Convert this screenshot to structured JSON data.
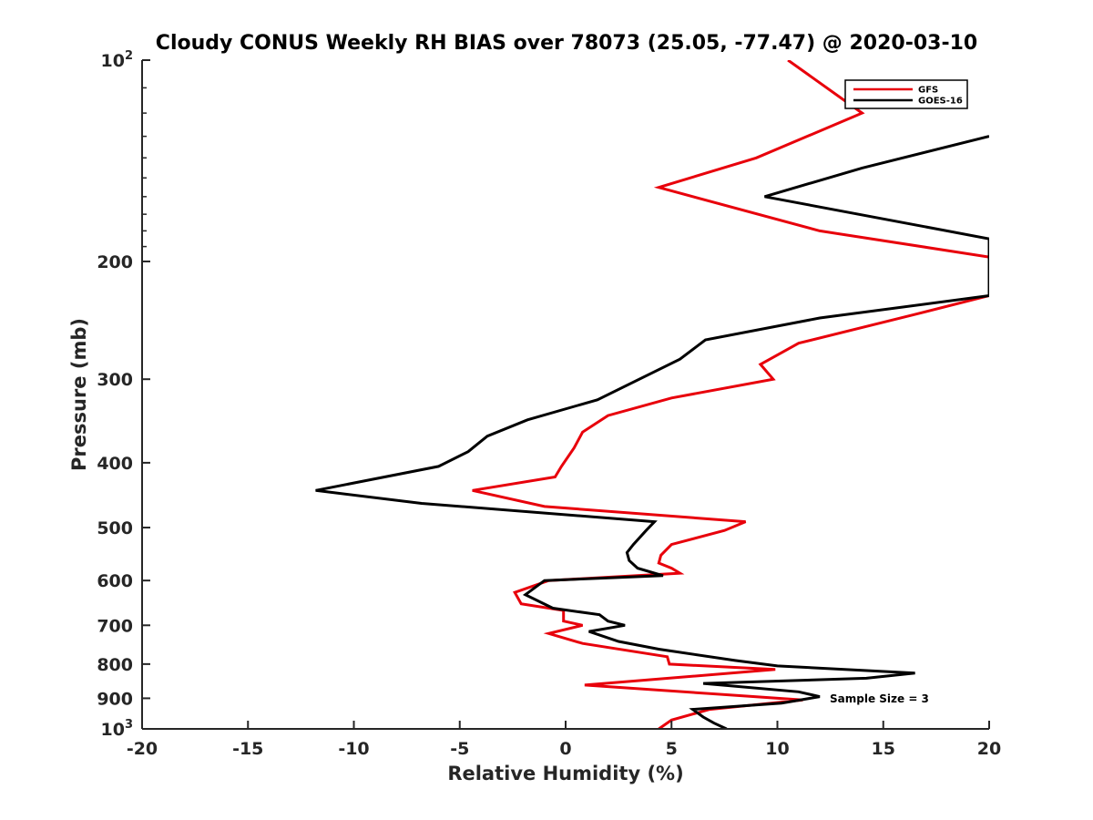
{
  "chart_data": {
    "type": "line",
    "title": "Cloudy CONUS Weekly RH BIAS over 78073 (25.05, -77.47) @ 2020-03-10",
    "xlabel": "Relative Humidity (%)",
    "ylabel": "Pressure (mb)",
    "xlim": [
      -20,
      20
    ],
    "ylim": [
      100,
      1000
    ],
    "y_scale": "log",
    "y_reversed": true,
    "grid": false,
    "legend_position": "top-right",
    "x_ticks": [
      "-20",
      "-15",
      "-10",
      "-5",
      "0",
      "5",
      "10",
      "15",
      "20"
    ],
    "y_ticks": [
      {
        "value": 100,
        "base": "10",
        "exp": "2"
      },
      {
        "value": 200,
        "label": "200"
      },
      {
        "value": 300,
        "label": "300"
      },
      {
        "value": 400,
        "label": "400"
      },
      {
        "value": 500,
        "label": "500"
      },
      {
        "value": 600,
        "label": "600"
      },
      {
        "value": 700,
        "label": "700"
      },
      {
        "value": 800,
        "label": "800"
      },
      {
        "value": 900,
        "label": "900"
      },
      {
        "value": 1000,
        "base": "10",
        "exp": "3"
      }
    ],
    "annotation": "Sample Size = 3",
    "series": [
      {
        "name": "GFS",
        "color": "#e8000b",
        "points": [
          [
            10.5,
            100
          ],
          [
            14,
            120
          ],
          [
            9,
            140
          ],
          [
            4.4,
            155
          ],
          [
            12,
            180
          ],
          [
            20,
            197
          ],
          [
            20,
            225
          ],
          [
            16.5,
            240
          ],
          [
            11,
            265
          ],
          [
            9.2,
            285
          ],
          [
            9.8,
            300
          ],
          [
            5,
            320
          ],
          [
            2,
            340
          ],
          [
            0.8,
            360
          ],
          [
            0.4,
            380
          ],
          [
            -0.2,
            405
          ],
          [
            -0.5,
            420
          ],
          [
            -4.4,
            440
          ],
          [
            -1,
            465
          ],
          [
            8.5,
            490
          ],
          [
            7.5,
            505
          ],
          [
            5,
            530
          ],
          [
            4.5,
            550
          ],
          [
            4.4,
            565
          ],
          [
            5,
            575
          ],
          [
            5.4,
            585
          ],
          [
            -0.8,
            600
          ],
          [
            -2.4,
            625
          ],
          [
            -2.1,
            650
          ],
          [
            -0.1,
            665
          ],
          [
            -0.1,
            690
          ],
          [
            0.8,
            700
          ],
          [
            -0.8,
            720
          ],
          [
            0.8,
            745
          ],
          [
            4.8,
            780
          ],
          [
            4.9,
            800
          ],
          [
            9.9,
            815
          ],
          [
            0.9,
            860
          ],
          [
            11.2,
            905
          ],
          [
            6.8,
            935
          ],
          [
            5,
            970
          ],
          [
            4.4,
            1000
          ]
        ]
      },
      {
        "name": "GOES-16",
        "color": "#000000",
        "points": [
          [
            20,
            130
          ],
          [
            14,
            145
          ],
          [
            9.4,
            160
          ],
          [
            20,
            185
          ],
          [
            20,
            225
          ],
          [
            12,
            243
          ],
          [
            6.6,
            262
          ],
          [
            5.4,
            280
          ],
          [
            1.5,
            322
          ],
          [
            -1.8,
            345
          ],
          [
            -3.7,
            365
          ],
          [
            -4.6,
            385
          ],
          [
            -6,
            405
          ],
          [
            -11.8,
            440
          ],
          [
            -6.8,
            460
          ],
          [
            4.2,
            490
          ],
          [
            3.8,
            505
          ],
          [
            3.2,
            530
          ],
          [
            2.9,
            545
          ],
          [
            3,
            560
          ],
          [
            3.4,
            575
          ],
          [
            4.6,
            590
          ],
          [
            -1,
            600
          ],
          [
            -1.9,
            630
          ],
          [
            -0.6,
            660
          ],
          [
            1.6,
            675
          ],
          [
            2,
            690
          ],
          [
            2.8,
            700
          ],
          [
            1.1,
            715
          ],
          [
            2.5,
            740
          ],
          [
            4.4,
            760
          ],
          [
            8,
            790
          ],
          [
            10,
            805
          ],
          [
            16.5,
            825
          ],
          [
            14.2,
            840
          ],
          [
            6.5,
            855
          ],
          [
            11,
            880
          ],
          [
            12,
            895
          ],
          [
            10.2,
            915
          ],
          [
            6,
            935
          ],
          [
            6.5,
            960
          ],
          [
            7,
            980
          ],
          [
            7.6,
            1000
          ]
        ]
      }
    ]
  }
}
